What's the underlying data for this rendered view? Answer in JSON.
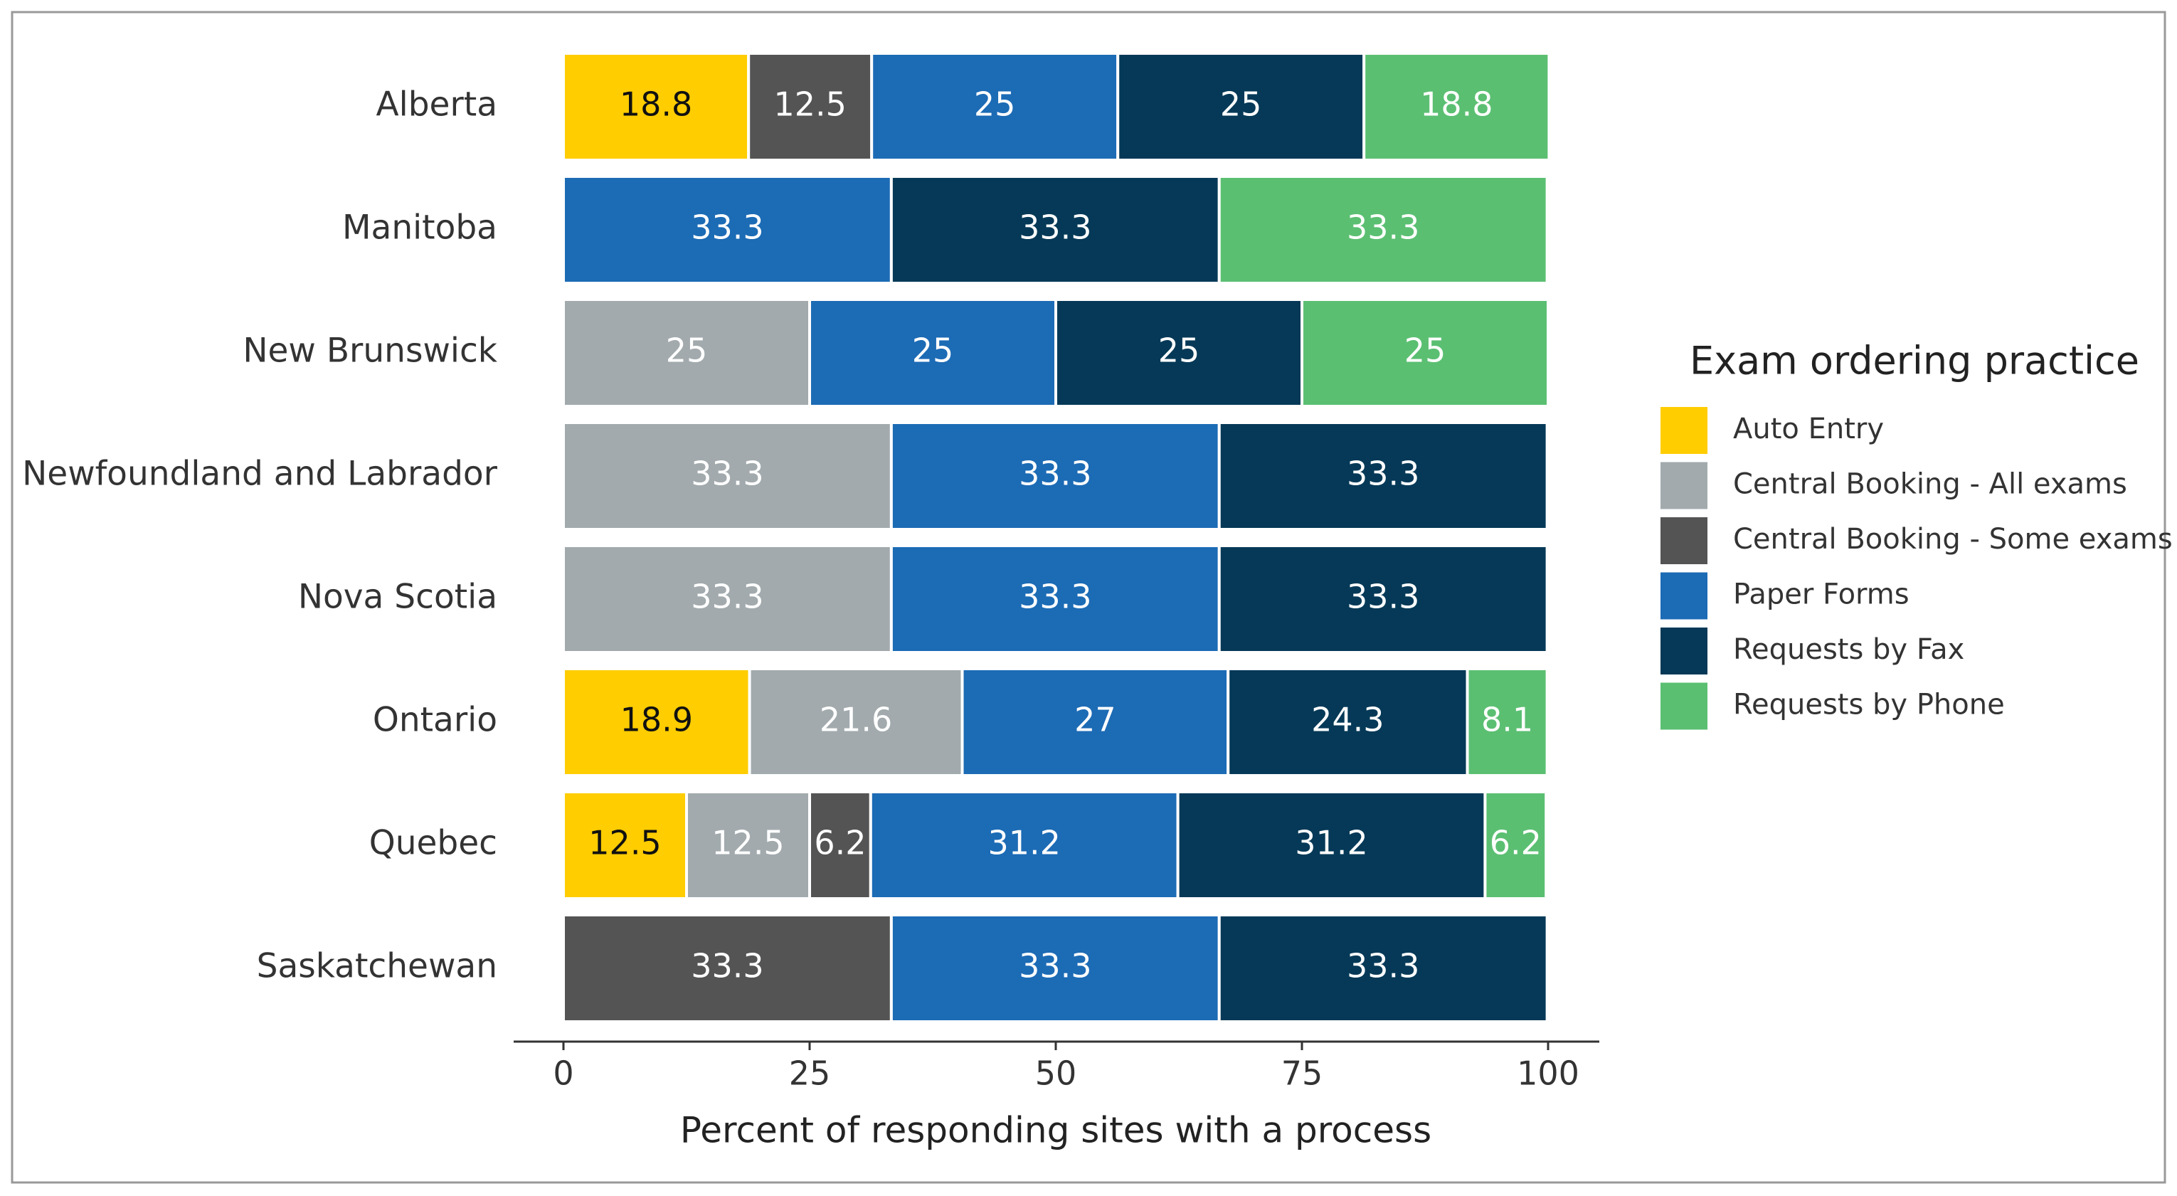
{
  "chart_data": {
    "type": "stacked_bar_horizontal",
    "x_label": "Percent of responding sites with a process",
    "legend_title": "Exam ordering practice",
    "legend_position": "right",
    "categories": [
      "Alberta",
      "Manitoba",
      "New Brunswick",
      "Newfoundland and Labrador",
      "Nova Scotia",
      "Ontario",
      "Quebec",
      "Saskatchewan"
    ],
    "series": [
      {
        "name": "Auto Entry",
        "color": "#ffcd00",
        "values": [
          18.8,
          null,
          null,
          null,
          null,
          18.9,
          12.5,
          null
        ]
      },
      {
        "name": "Central Booking - All exams",
        "color": "#a2aaad",
        "values": [
          null,
          null,
          25,
          33.3,
          33.3,
          21.6,
          12.5,
          null
        ]
      },
      {
        "name": "Central Booking - Some exams",
        "color": "#545454",
        "values": [
          12.5,
          null,
          null,
          null,
          null,
          null,
          6.2,
          33.3
        ]
      },
      {
        "name": "Paper Forms",
        "color": "#1c6bb5",
        "values": [
          25,
          33.3,
          25,
          33.3,
          33.3,
          27,
          31.2,
          33.3
        ]
      },
      {
        "name": "Requests by Fax",
        "color": "#053957",
        "values": [
          25,
          33.3,
          25,
          33.3,
          33.3,
          24.3,
          31.2,
          33.3
        ]
      },
      {
        "name": "Requests by Phone",
        "color": "#5bbf72",
        "values": [
          18.8,
          33.3,
          25,
          null,
          null,
          8.1,
          6.2,
          null
        ]
      }
    ],
    "xlim": [
      0,
      100
    ],
    "xticks": [
      0,
      25,
      50,
      75,
      100
    ]
  }
}
